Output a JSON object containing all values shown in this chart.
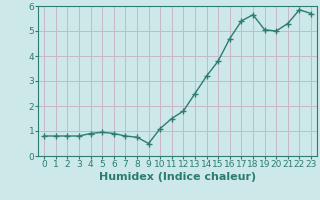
{
  "x": [
    0,
    1,
    2,
    3,
    4,
    5,
    6,
    7,
    8,
    9,
    10,
    11,
    12,
    13,
    14,
    15,
    16,
    17,
    18,
    19,
    20,
    21,
    22,
    23
  ],
  "y": [
    0.8,
    0.8,
    0.8,
    0.8,
    0.9,
    0.95,
    0.9,
    0.8,
    0.75,
    0.5,
    1.1,
    1.5,
    1.8,
    2.5,
    3.2,
    3.8,
    4.7,
    5.4,
    5.65,
    5.05,
    5.0,
    5.3,
    5.85,
    5.7
  ],
  "xlabel": "Humidex (Indice chaleur)",
  "ylim": [
    0,
    6
  ],
  "xlim": [
    -0.5,
    23.5
  ],
  "yticks": [
    0,
    1,
    2,
    3,
    4,
    5,
    6
  ],
  "xticks": [
    0,
    1,
    2,
    3,
    4,
    5,
    6,
    7,
    8,
    9,
    10,
    11,
    12,
    13,
    14,
    15,
    16,
    17,
    18,
    19,
    20,
    21,
    22,
    23
  ],
  "line_color": "#2d7d6e",
  "marker": "+",
  "marker_size": 4,
  "bg_color": "#cce8e8",
  "grid_color": "#c8b8c8",
  "xlabel_fontsize": 8,
  "tick_fontsize": 6.5,
  "xlabel_color": "#2d7d6e",
  "tick_color": "#2d7d6e"
}
